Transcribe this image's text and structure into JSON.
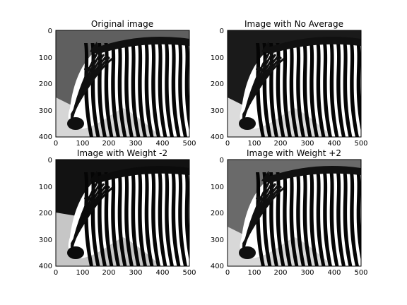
{
  "panels": [
    {
      "title": "Original image",
      "x_ticks": [
        "0",
        "100",
        "200",
        "300",
        "400",
        "500"
      ],
      "y_ticks": [
        "0",
        "100",
        "200",
        "300",
        "400"
      ],
      "palette": {
        "bg": "#5f5f5f",
        "light": "#d6d6d6",
        "dark": "#101010",
        "stripe": "#060606"
      }
    },
    {
      "title": "Image with No Average",
      "x_ticks": [
        "0",
        "100",
        "200",
        "300",
        "400",
        "500"
      ],
      "y_ticks": [
        "0",
        "100",
        "200",
        "300",
        "400"
      ],
      "palette": {
        "bg": "#1a1a1a",
        "light": "#dcdcdc",
        "dark": "#101010",
        "stripe": "#050505"
      }
    },
    {
      "title": "Image with Weight -2",
      "x_ticks": [
        "0",
        "100",
        "200",
        "300",
        "400",
        "500"
      ],
      "y_ticks": [
        "0",
        "100",
        "200",
        "300",
        "400"
      ],
      "palette": {
        "bg": "#121212",
        "light": "#c6c6c6",
        "dark": "#0b0b0b",
        "stripe": "#050505"
      }
    },
    {
      "title": "Image with Weight +2",
      "x_ticks": [
        "0",
        "100",
        "200",
        "300",
        "400",
        "500"
      ],
      "y_ticks": [
        "0",
        "100",
        "200",
        "300",
        "400"
      ],
      "palette": {
        "bg": "#6a6a6a",
        "light": "#d8d8d8",
        "dark": "#101010",
        "stripe": "#050505"
      }
    }
  ]
}
